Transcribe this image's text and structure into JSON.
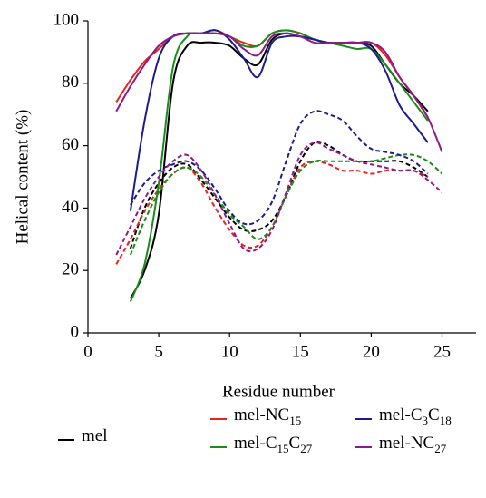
{
  "chart_data": {
    "type": "line",
    "xlabel": "Residue number",
    "ylabel": "Helical content (%)",
    "x": [
      2,
      3,
      4,
      5,
      6,
      7,
      8,
      9,
      10,
      11,
      12,
      13,
      14,
      15,
      16,
      17,
      18,
      19,
      20,
      21,
      22,
      23,
      24,
      25
    ],
    "xlim": [
      0,
      27.4
    ],
    "xticks": [
      0,
      5,
      10,
      15,
      20,
      25
    ],
    "ylim": [
      0,
      100
    ],
    "yticks": [
      0,
      20,
      40,
      60,
      80,
      100
    ],
    "series": [
      {
        "name": "mel",
        "color": "#000000",
        "values": [
          null,
          11,
          20,
          38,
          80,
          92,
          93,
          93,
          92,
          88,
          86,
          94,
          96,
          95,
          94,
          93,
          93,
          93,
          92,
          86,
          80,
          76,
          71,
          null
        ],
        "dashed_values": [
          null,
          27,
          40,
          48,
          53,
          54,
          49,
          43,
          37,
          33,
          33,
          36,
          44,
          55,
          61,
          60,
          57,
          55,
          55,
          55,
          55,
          53,
          50,
          null
        ]
      },
      {
        "name": "mel-NC15",
        "color": "#e8231f",
        "values": [
          74,
          81,
          87,
          91,
          95,
          96,
          96,
          97,
          95,
          93,
          92,
          96,
          97,
          96,
          94,
          93,
          93,
          93,
          93,
          89,
          82,
          76,
          69,
          null
        ],
        "dashed_values": [
          22,
          30,
          39,
          46,
          51,
          53,
          48,
          40,
          33,
          28,
          28,
          34,
          44,
          53,
          55,
          54,
          52,
          52,
          51,
          52,
          52,
          52,
          50,
          null
        ]
      },
      {
        "name": "mel-C15C27",
        "color": "#1a8c1a",
        "values": [
          null,
          10,
          22,
          48,
          85,
          95,
          96,
          96,
          95,
          92,
          92,
          96,
          97,
          96,
          94,
          93,
          92,
          91,
          91,
          86,
          80,
          74,
          68,
          null
        ],
        "dashed_values": [
          null,
          25,
          36,
          45,
          51,
          53,
          50,
          44,
          38,
          34,
          30,
          34,
          44,
          52,
          55,
          55,
          55,
          55,
          55,
          56,
          57,
          57,
          55,
          51
        ]
      },
      {
        "name": "mel-C3C18",
        "color": "#1c1c8c",
        "values": [
          null,
          39,
          68,
          88,
          95,
          96,
          96,
          97,
          94,
          88,
          82,
          93,
          95,
          95,
          94,
          93,
          93,
          93,
          91,
          84,
          73,
          67,
          61,
          null
        ],
        "dashed_values": [
          null,
          41,
          48,
          52,
          54,
          55,
          52,
          46,
          39,
          35,
          36,
          42,
          55,
          67,
          71,
          70,
          68,
          63,
          59,
          58,
          57,
          55,
          51,
          null
        ]
      },
      {
        "name": "mel-NC27",
        "color": "#8c1a8c",
        "values": [
          71,
          79,
          86,
          92,
          95,
          96,
          96,
          96,
          95,
          91,
          89,
          95,
          96,
          95,
          93,
          93,
          93,
          93,
          93,
          90,
          82,
          76,
          69,
          58
        ],
        "dashed_values": [
          25,
          34,
          43,
          50,
          55,
          57,
          52,
          44,
          35,
          27,
          27,
          33,
          45,
          57,
          61,
          59,
          57,
          55,
          54,
          53,
          52,
          52,
          49,
          45
        ]
      }
    ]
  }
}
